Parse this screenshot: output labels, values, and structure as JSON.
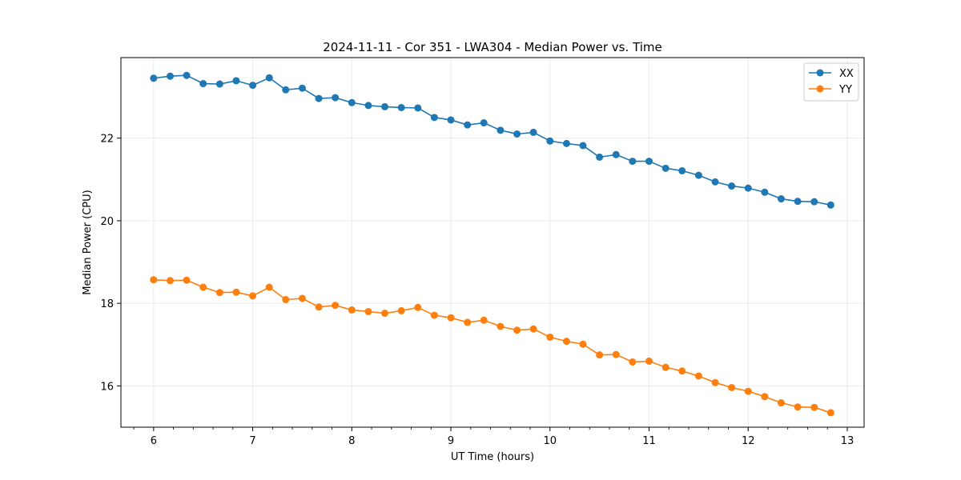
{
  "chart_data": {
    "type": "line",
    "title": "2024-11-11 - Cor 351 - LWA304 - Median Power vs. Time",
    "xlabel": "UT Time (hours)",
    "ylabel": "Median Power (CPU)",
    "xlim": [
      5.67,
      13.17
    ],
    "ylim": [
      15.0,
      23.95
    ],
    "xticks": [
      6,
      7,
      8,
      9,
      10,
      11,
      12,
      13
    ],
    "yticks": [
      16,
      18,
      20,
      22
    ],
    "grid": true,
    "legend_position": "top-right",
    "x": [
      6.0,
      6.167,
      6.333,
      6.5,
      6.667,
      6.833,
      7.0,
      7.167,
      7.333,
      7.5,
      7.667,
      7.833,
      8.0,
      8.167,
      8.333,
      8.5,
      8.667,
      8.833,
      9.0,
      9.167,
      9.333,
      9.5,
      9.667,
      9.833,
      10.0,
      10.167,
      10.333,
      10.5,
      10.667,
      10.833,
      11.0,
      11.167,
      11.333,
      11.5,
      11.667,
      11.833,
      12.0,
      12.167,
      12.333,
      12.5,
      12.667,
      12.833
    ],
    "series": [
      {
        "name": "XX",
        "color": "#1f77b4",
        "values": [
          23.45,
          23.5,
          23.52,
          23.32,
          23.31,
          23.39,
          23.28,
          23.46,
          23.17,
          23.21,
          22.96,
          22.98,
          22.86,
          22.79,
          22.76,
          22.74,
          22.73,
          22.5,
          22.44,
          22.32,
          22.37,
          22.19,
          22.1,
          22.14,
          21.93,
          21.87,
          21.82,
          21.54,
          21.6,
          21.44,
          21.44,
          21.27,
          21.21,
          21.1,
          20.94,
          20.84,
          20.79,
          20.69,
          20.53,
          20.47,
          20.46,
          20.38
        ]
      },
      {
        "name": "YY",
        "color": "#ff7f0e",
        "values": [
          18.57,
          18.55,
          18.56,
          18.39,
          18.26,
          18.27,
          18.18,
          18.39,
          18.09,
          18.12,
          17.91,
          17.95,
          17.84,
          17.8,
          17.76,
          17.82,
          17.9,
          17.71,
          17.65,
          17.54,
          17.59,
          17.44,
          17.35,
          17.38,
          17.18,
          17.08,
          17.01,
          16.75,
          16.76,
          16.58,
          16.6,
          16.45,
          16.36,
          16.24,
          16.08,
          15.96,
          15.87,
          15.74,
          15.59,
          15.49,
          15.48,
          15.35
        ]
      }
    ]
  }
}
